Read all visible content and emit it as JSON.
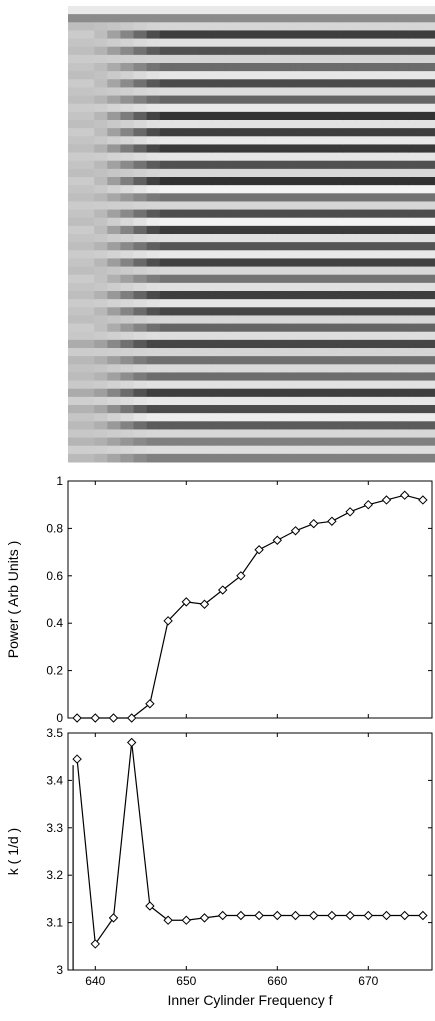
{
  "chart_data": [
    {
      "type": "heatmap",
      "title": "",
      "xlabel": "",
      "ylabel": "",
      "description_values": {
        "x_columns": 28,
        "bands": 56
      }
    },
    {
      "type": "line",
      "title": "",
      "xlabel": "",
      "ylabel": "Power ( Arb Units )",
      "xlim": [
        637,
        677
      ],
      "ylim": [
        0,
        1
      ],
      "yticks": [
        "0",
        "0.2",
        "0.4",
        "0.6",
        "0.8",
        "1"
      ],
      "x": [
        638,
        640,
        642,
        644,
        646,
        648,
        650,
        652,
        654,
        656,
        658,
        660,
        662,
        664,
        666,
        668,
        670,
        672,
        674,
        676
      ],
      "series": [
        {
          "values": [
            0.0,
            0.0,
            0.0,
            0.0,
            0.06,
            0.41,
            0.49,
            0.48,
            0.54,
            0.6,
            0.71,
            0.75,
            0.79,
            0.82,
            0.83,
            0.87,
            0.9,
            0.92,
            0.94,
            0.92
          ],
          "marker": "diamond",
          "color": "#000000"
        }
      ]
    },
    {
      "type": "line",
      "title": "",
      "xlabel": "Inner Cylinder Frequency f",
      "ylabel": "k ( 1/d )",
      "xlim": [
        637,
        677
      ],
      "ylim": [
        3,
        3.5
      ],
      "xticks": [
        "640",
        "650",
        "660",
        "670"
      ],
      "yticks": [
        "3",
        "3.1",
        "3.2",
        "3.3",
        "3.4",
        "3.5"
      ],
      "x": [
        638,
        640,
        642,
        644,
        646,
        648,
        650,
        652,
        654,
        656,
        658,
        660,
        662,
        664,
        666,
        668,
        670,
        672,
        674,
        676
      ],
      "series": [
        {
          "values": [
            3.445,
            3.055,
            3.11,
            3.48,
            3.135,
            3.105,
            3.105,
            3.11,
            3.115,
            3.115,
            3.115,
            3.115,
            3.115,
            3.115,
            3.115,
            3.115,
            3.115,
            3.115,
            3.115,
            3.115
          ],
          "marker": "diamond",
          "color": "#000000"
        }
      ]
    }
  ]
}
